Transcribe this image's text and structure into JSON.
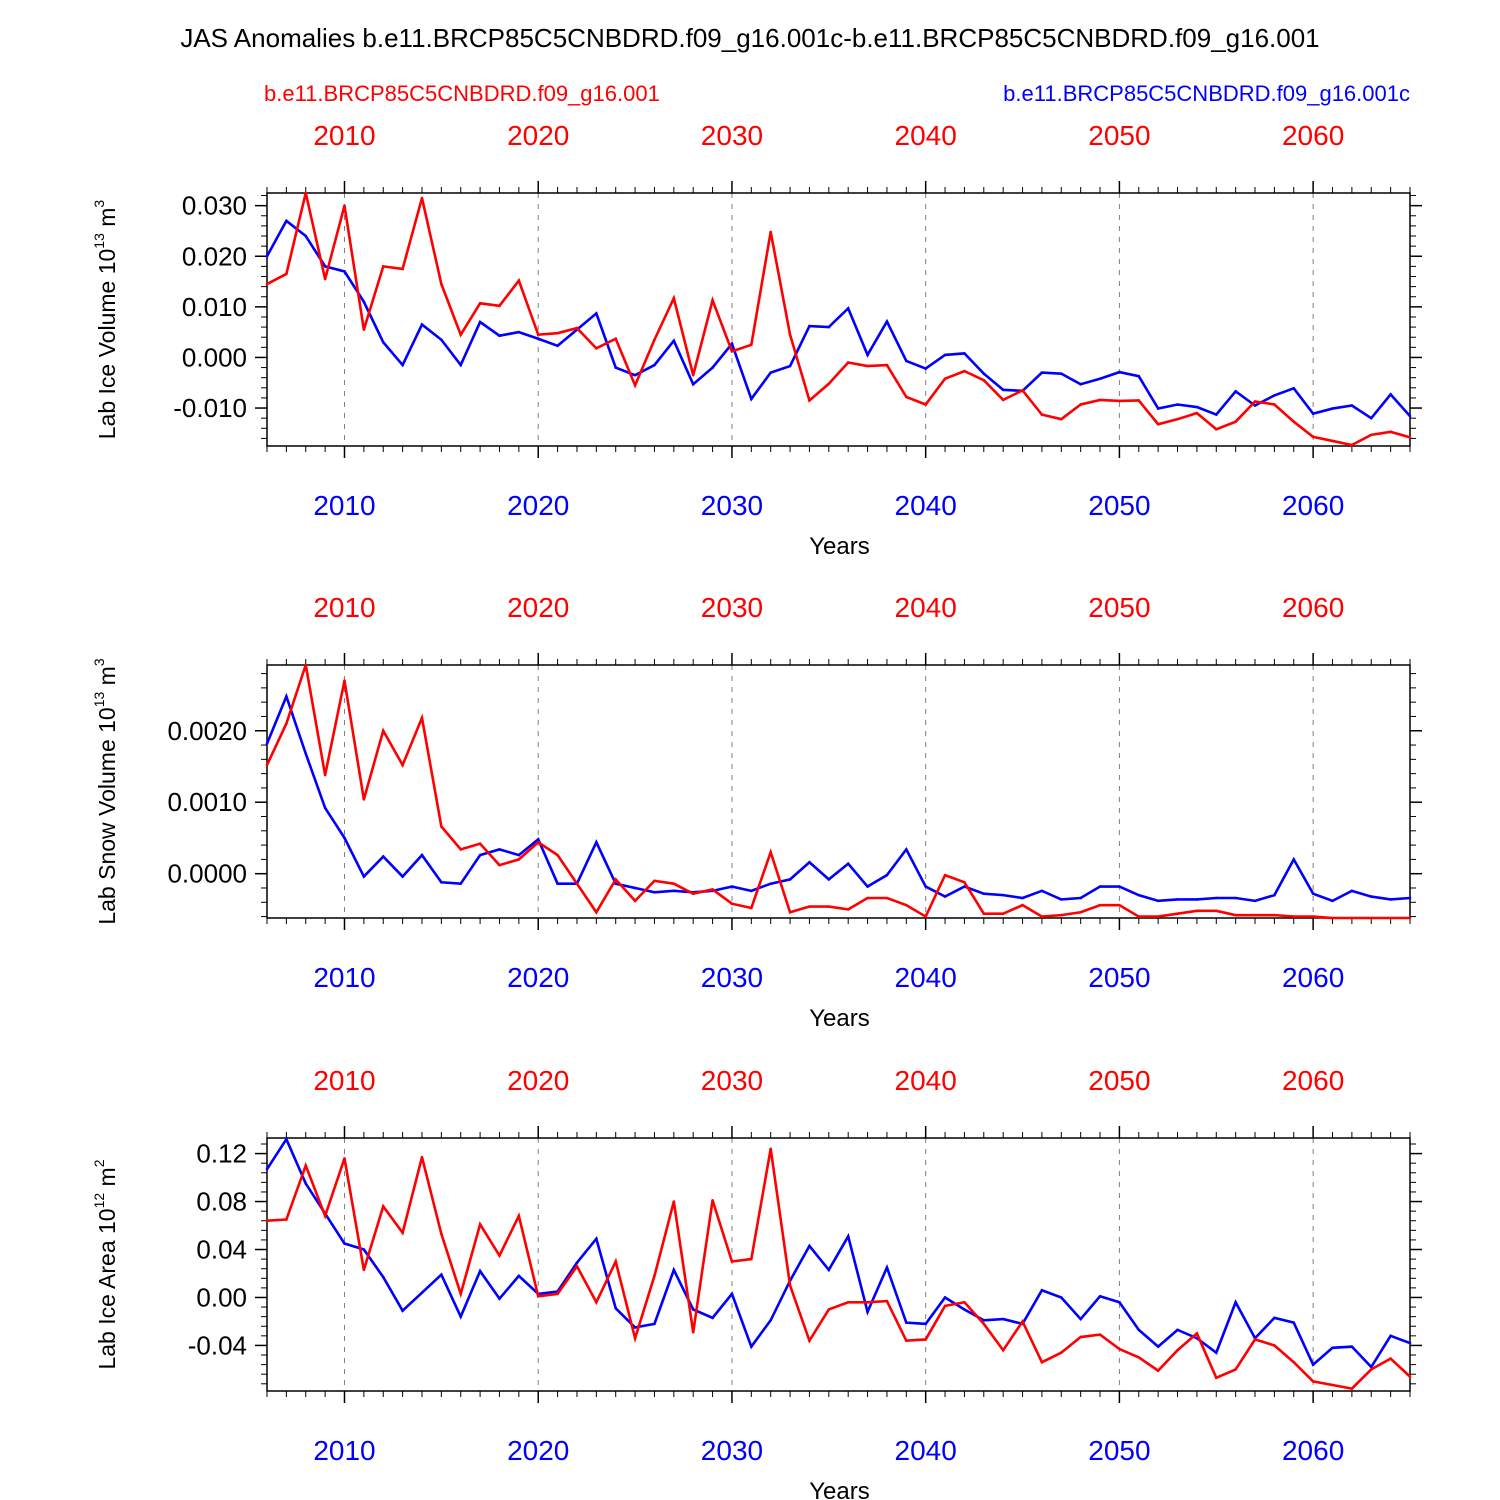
{
  "title": "JAS Anomalies b.e11.BRCP85C5CNBDRD.f09_g16.001c-b.e11.BRCP85C5CNBDRD.f09_g16.001",
  "legend": {
    "left_label": "b.e11.BRCP85C5CNBDRD.f09_g16.001",
    "right_label": "b.e11.BRCP85C5CNBDRD.f09_g16.001c"
  },
  "colors": {
    "red_series": "#ff0000",
    "blue_series": "#0000ff",
    "axis": "#000000",
    "grid": "#808080"
  },
  "chart_data": [
    {
      "type": "line",
      "ylabel": {
        "base": "Lab Ice Volume 10",
        "exp": "13",
        "unit": " m",
        "unit_exp": "3"
      },
      "xlabel": "Years",
      "xlim": [
        2006,
        2065
      ],
      "ylim": [
        -0.0175,
        0.0325
      ],
      "yticks": [
        -0.01,
        0.0,
        0.01,
        0.02,
        0.03
      ],
      "ytick_labels": [
        "-0.010",
        "0.000",
        "0.010",
        "0.020",
        "0.030"
      ],
      "xticks": [
        2010,
        2020,
        2030,
        2040,
        2050,
        2060
      ],
      "xtick_labels": [
        "2010",
        "2020",
        "2030",
        "2040",
        "2050",
        "2060"
      ],
      "x_start": 2006,
      "series": [
        {
          "name": "b.e11.BRCP85C5CNBDRD.f09_g16.001c",
          "color": "blue",
          "values": [
            0.02,
            0.027,
            0.024,
            0.018,
            0.017,
            0.011,
            0.003,
            -0.0015,
            0.0065,
            0.0035,
            -0.0015,
            0.007,
            0.0043,
            0.005,
            0.0037,
            0.0023,
            0.0055,
            0.0087,
            -0.002,
            -0.0035,
            -0.0015,
            0.0033,
            -0.0053,
            -0.002,
            0.0027,
            -0.0082,
            -0.003,
            -0.0017,
            0.0062,
            0.006,
            0.0097,
            0.0005,
            0.0071,
            -0.0007,
            -0.0022,
            0.0005,
            0.0008,
            -0.0032,
            -0.0064,
            -0.0066,
            -0.003,
            -0.0032,
            -0.0053,
            -0.0042,
            -0.0029,
            -0.0037,
            -0.0101,
            -0.0093,
            -0.0098,
            -0.0113,
            -0.0067,
            -0.0095,
            -0.0075,
            -0.0061,
            -0.0111,
            -0.0101,
            -0.0095,
            -0.012,
            -0.0073,
            -0.0116
          ]
        },
        {
          "name": "b.e11.BRCP85C5CNBDRD.f09_g16.001",
          "color": "red",
          "values": [
            0.0145,
            0.0165,
            0.0325,
            0.0155,
            0.03,
            0.0055,
            0.018,
            0.0175,
            0.0315,
            0.0145,
            0.0045,
            0.0107,
            0.0102,
            0.0152,
            0.0045,
            0.0048,
            0.0058,
            0.0018,
            0.0037,
            -0.0055,
            0.0035,
            0.0117,
            -0.0035,
            0.0113,
            0.0012,
            0.0025,
            0.0248,
            0.0045,
            -0.0085,
            -0.0052,
            -0.001,
            -0.0017,
            -0.0015,
            -0.0078,
            -0.0093,
            -0.0042,
            -0.0027,
            -0.0045,
            -0.0084,
            -0.0065,
            -0.0113,
            -0.0122,
            -0.0093,
            -0.0084,
            -0.0086,
            -0.0085,
            -0.0132,
            -0.0122,
            -0.011,
            -0.0142,
            -0.0127,
            -0.0087,
            -0.0093,
            -0.0127,
            -0.0157,
            -0.0165,
            -0.0173,
            -0.0153,
            -0.0147,
            -0.0158
          ]
        }
      ]
    },
    {
      "type": "line",
      "ylabel": {
        "base": "Lab Snow Volume 10",
        "exp": "13",
        "unit": " m",
        "unit_exp": "3"
      },
      "xlabel": "Years",
      "xlim": [
        2006,
        2065
      ],
      "ylim": [
        -0.00062,
        0.00292
      ],
      "yticks": [
        0.0,
        0.001,
        0.002
      ],
      "ytick_labels": [
        "0.0000",
        "0.0010",
        "0.0020"
      ],
      "xticks": [
        2010,
        2020,
        2030,
        2040,
        2050,
        2060
      ],
      "xtick_labels": [
        "2010",
        "2020",
        "2030",
        "2040",
        "2050",
        "2060"
      ],
      "x_start": 2006,
      "series": [
        {
          "name": "b.e11.BRCP85C5CNBDRD.f09_g16.001c",
          "color": "blue",
          "values": [
            0.00182,
            0.00248,
            0.00168,
            0.00092,
            0.0005,
            -4e-05,
            0.00024,
            -4e-05,
            0.00026,
            -0.00012,
            -0.00014,
            0.00026,
            0.00034,
            0.00026,
            0.00048,
            -0.00014,
            -0.00014,
            0.00044,
            -0.00014,
            -0.0002,
            -0.00026,
            -0.00024,
            -0.00026,
            -0.00024,
            -0.00018,
            -0.00024,
            -0.00014,
            -8e-05,
            0.00016,
            -8e-05,
            0.00014,
            -0.00018,
            -2e-05,
            0.00034,
            -0.00018,
            -0.00032,
            -0.00018,
            -0.00028,
            -0.0003,
            -0.00034,
            -0.00024,
            -0.00036,
            -0.00034,
            -0.00018,
            -0.00018,
            -0.0003,
            -0.00038,
            -0.00036,
            -0.00036,
            -0.00034,
            -0.00034,
            -0.00038,
            -0.0003,
            0.0002,
            -0.00028,
            -0.00038,
            -0.00024,
            -0.00032,
            -0.00036,
            -0.00034
          ]
        },
        {
          "name": "b.e11.BRCP85C5CNBDRD.f09_g16.001",
          "color": "red",
          "values": [
            0.00152,
            0.0021,
            0.00292,
            0.00138,
            0.0027,
            0.00104,
            0.002,
            0.00152,
            0.00218,
            0.00066,
            0.00034,
            0.00042,
            0.00012,
            0.0002,
            0.00044,
            0.00026,
            -0.00014,
            -0.00054,
            -8e-05,
            -0.00038,
            -0.0001,
            -0.00014,
            -0.00028,
            -0.00022,
            -0.00042,
            -0.00048,
            0.0003,
            -0.00054,
            -0.00046,
            -0.00046,
            -0.0005,
            -0.00034,
            -0.00034,
            -0.00044,
            -0.0006,
            -2e-05,
            -0.00012,
            -0.00056,
            -0.00056,
            -0.00044,
            -0.0006,
            -0.00058,
            -0.00054,
            -0.00044,
            -0.00044,
            -0.0006,
            -0.0006,
            -0.00056,
            -0.00052,
            -0.00052,
            -0.00058,
            -0.00058,
            -0.00058,
            -0.0006,
            -0.0006,
            -0.00062,
            -0.00062,
            -0.00062,
            -0.00062,
            -0.00062
          ]
        }
      ]
    },
    {
      "type": "line",
      "ylabel": {
        "base": "Lab Ice Area 10",
        "exp": "12",
        "unit": " m",
        "unit_exp": "2"
      },
      "xlabel": "Years",
      "xlim": [
        2006,
        2065
      ],
      "ylim": [
        -0.078,
        0.133
      ],
      "yticks": [
        -0.04,
        0.0,
        0.04,
        0.08,
        0.12
      ],
      "ytick_labels": [
        "-0.04",
        "0.00",
        "0.04",
        "0.08",
        "0.12"
      ],
      "xticks": [
        2010,
        2020,
        2030,
        2040,
        2050,
        2060
      ],
      "xtick_labels": [
        "2010",
        "2020",
        "2030",
        "2040",
        "2050",
        "2060"
      ],
      "x_start": 2006,
      "series": [
        {
          "name": "b.e11.BRCP85C5CNBDRD.f09_g16.001c",
          "color": "blue",
          "values": [
            0.107,
            0.132,
            0.095,
            0.07,
            0.045,
            0.04,
            0.017,
            -0.011,
            0.004,
            0.019,
            -0.016,
            0.022,
            -0.001,
            0.018,
            0.003,
            0.005,
            0.029,
            0.049,
            -0.009,
            -0.025,
            -0.022,
            0.023,
            -0.01,
            -0.017,
            0.003,
            -0.041,
            -0.019,
            0.014,
            0.043,
            0.023,
            0.051,
            -0.012,
            0.025,
            -0.021,
            -0.022,
            0.0,
            -0.01,
            -0.019,
            -0.018,
            -0.022,
            0.006,
            0.0,
            -0.018,
            0.001,
            -0.004,
            -0.027,
            -0.041,
            -0.027,
            -0.034,
            -0.046,
            -0.004,
            -0.034,
            -0.017,
            -0.021,
            -0.056,
            -0.042,
            -0.041,
            -0.058,
            -0.032,
            -0.038
          ]
        },
        {
          "name": "b.e11.BRCP85C5CNBDRD.f09_g16.001",
          "color": "red",
          "values": [
            0.064,
            0.065,
            0.11,
            0.068,
            0.116,
            0.023,
            0.076,
            0.054,
            0.117,
            0.053,
            0.003,
            0.061,
            0.035,
            0.068,
            0.001,
            0.003,
            0.026,
            -0.004,
            0.03,
            -0.034,
            0.018,
            0.08,
            -0.029,
            0.081,
            0.03,
            0.032,
            0.124,
            0.01,
            -0.036,
            -0.01,
            -0.004,
            -0.004,
            -0.003,
            -0.036,
            -0.035,
            -0.007,
            -0.004,
            -0.022,
            -0.044,
            -0.02,
            -0.054,
            -0.046,
            -0.033,
            -0.031,
            -0.043,
            -0.05,
            -0.061,
            -0.044,
            -0.03,
            -0.067,
            -0.06,
            -0.035,
            -0.04,
            -0.054,
            -0.07,
            -0.073,
            -0.076,
            -0.06,
            -0.051,
            -0.066
          ]
        }
      ]
    }
  ]
}
